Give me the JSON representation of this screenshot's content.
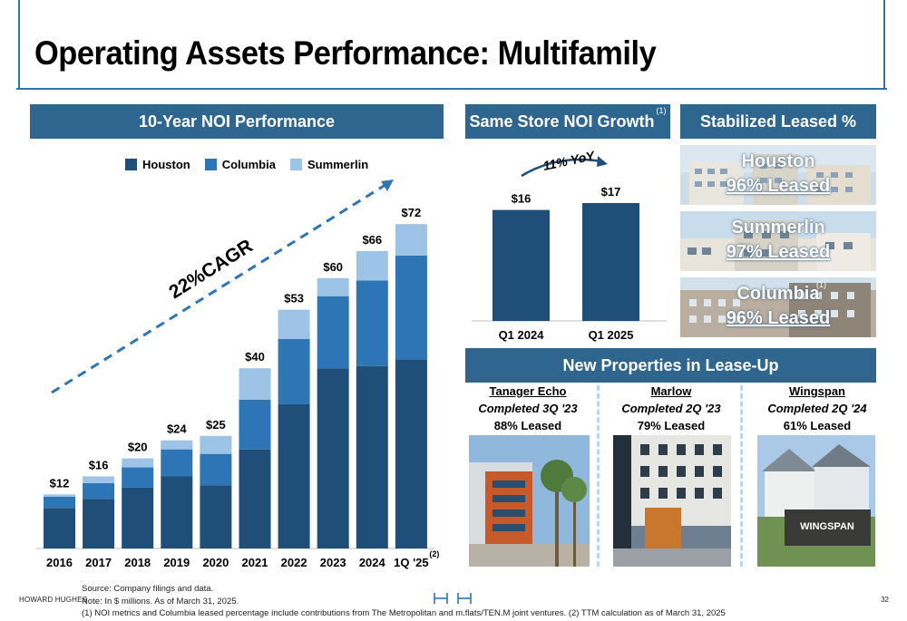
{
  "page": {
    "title": "Operating Assets Performance: Multifamily",
    "brand": "HOWARD HUGHES",
    "page_number": "32",
    "footnotes": [
      "Source: Company filings and data.",
      "Note: In $ millions. As of March 31, 2025.",
      "(1) NOI metrics and Columbia leased percentage include contributions from The Metropolitan and m.flats/TEN.M joint ventures. (2) TTM calculation as of March 31, 2025"
    ]
  },
  "sections": {
    "noi_title": "10-Year NOI Performance",
    "same_store_title": "Same Store NOI Growth",
    "same_store_footnote": "(1)",
    "stabilized_title": "Stabilized Leased %",
    "new_props_title": "New Properties in Lease-Up"
  },
  "colors": {
    "houston": "#1f4e79",
    "columbia": "#2e75b6",
    "summerlin": "#9dc3e6",
    "header_bg": "#2f6690",
    "accent_line": "#2e74b5"
  },
  "chart_data": [
    {
      "type": "bar",
      "stacked": true,
      "categories": [
        "2016",
        "2017",
        "2018",
        "2019",
        "2020",
        "2021",
        "2022",
        "2023",
        "2024",
        "1Q '25"
      ],
      "category_note": "(2)",
      "series": [
        {
          "name": "Houston",
          "values": [
            9,
            11,
            13.5,
            16,
            14,
            22,
            32,
            40,
            40.5,
            42
          ]
        },
        {
          "name": "Columbia",
          "values": [
            2.5,
            3.5,
            4.5,
            6,
            7,
            11,
            14.5,
            16,
            19,
            23
          ]
        },
        {
          "name": "Summerlin",
          "values": [
            0.5,
            1.5,
            2,
            2,
            4,
            7,
            6.5,
            4,
            6.5,
            7
          ]
        }
      ],
      "totals_labels": [
        "$12",
        "$16",
        "$20",
        "$24",
        "$25",
        "$40",
        "$53",
        "$60",
        "$66",
        "$72"
      ],
      "annotation": "22%CAGR",
      "ylim": [
        0,
        80
      ],
      "grid": false,
      "legend_position": "top"
    },
    {
      "type": "bar",
      "categories": [
        "Q1 2024",
        "Q1 2025"
      ],
      "values": [
        16,
        17
      ],
      "value_labels": [
        "$16",
        "$17"
      ],
      "annotation": "11% YoY",
      "ylim": [
        0,
        22
      ],
      "grid": false
    }
  ],
  "stabilized": [
    {
      "market": "Houston",
      "leased": "96% Leased",
      "note": ""
    },
    {
      "market": "Summerlin",
      "leased": "97% Leased",
      "note": ""
    },
    {
      "market": "Columbia",
      "leased": "96% Leased",
      "note": "(1)"
    }
  ],
  "new_properties": [
    {
      "name": "Tanager Echo",
      "completed": "Completed 3Q '23",
      "leased": "88% Leased"
    },
    {
      "name": "Marlow",
      "completed": "Completed 2Q '23",
      "leased": "79% Leased"
    },
    {
      "name": "Wingspan",
      "completed": "Completed 2Q '24",
      "leased": "61% Leased"
    }
  ]
}
